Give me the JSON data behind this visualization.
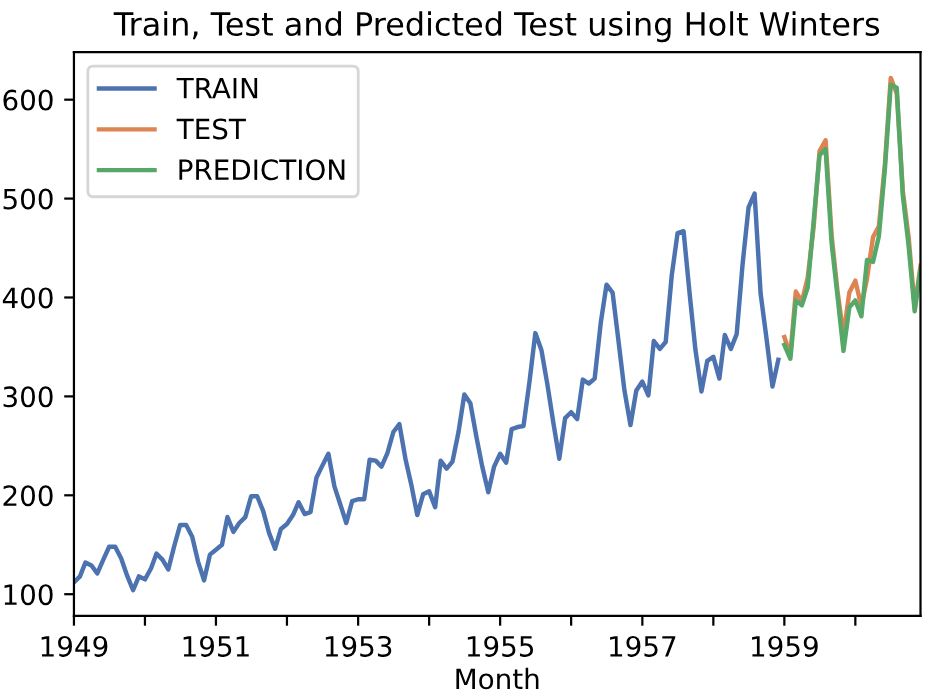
{
  "chart_data": {
    "type": "line",
    "title": "Train, Test and Predicted Test using Holt Winters",
    "xlabel": "Month",
    "legend": "top left",
    "grid": false,
    "xlim": [
      "1949-01",
      "1960-12"
    ],
    "xticks": [
      {
        "value": "1949-01",
        "label": "1949"
      },
      {
        "value": "1950-01",
        "label": null
      },
      {
        "value": "1951-01",
        "label": "1951"
      },
      {
        "value": "1952-01",
        "label": null
      },
      {
        "value": "1953-01",
        "label": "1953"
      },
      {
        "value": "1954-01",
        "label": null
      },
      {
        "value": "1955-01",
        "label": "1955"
      },
      {
        "value": "1956-01",
        "label": null
      },
      {
        "value": "1957-01",
        "label": "1957"
      },
      {
        "value": "1958-01",
        "label": null
      },
      {
        "value": "1959-01",
        "label": "1959"
      },
      {
        "value": "1960-01",
        "label": null
      }
    ],
    "ylim": [
      78,
      648
    ],
    "yticks": [
      100,
      200,
      300,
      400,
      500,
      600
    ],
    "series": [
      {
        "name": "TRAIN",
        "color": "#4c72b0",
        "x": [
          "1949-01",
          "1949-02",
          "1949-03",
          "1949-04",
          "1949-05",
          "1949-06",
          "1949-07",
          "1949-08",
          "1949-09",
          "1949-10",
          "1949-11",
          "1949-12",
          "1950-01",
          "1950-02",
          "1950-03",
          "1950-04",
          "1950-05",
          "1950-06",
          "1950-07",
          "1950-08",
          "1950-09",
          "1950-10",
          "1950-11",
          "1950-12",
          "1951-01",
          "1951-02",
          "1951-03",
          "1951-04",
          "1951-05",
          "1951-06",
          "1951-07",
          "1951-08",
          "1951-09",
          "1951-10",
          "1951-11",
          "1951-12",
          "1952-01",
          "1952-02",
          "1952-03",
          "1952-04",
          "1952-05",
          "1952-06",
          "1952-07",
          "1952-08",
          "1952-09",
          "1952-10",
          "1952-11",
          "1952-12",
          "1953-01",
          "1953-02",
          "1953-03",
          "1953-04",
          "1953-05",
          "1953-06",
          "1953-07",
          "1953-08",
          "1953-09",
          "1953-10",
          "1953-11",
          "1953-12",
          "1954-01",
          "1954-02",
          "1954-03",
          "1954-04",
          "1954-05",
          "1954-06",
          "1954-07",
          "1954-08",
          "1954-09",
          "1954-10",
          "1954-11",
          "1954-12",
          "1955-01",
          "1955-02",
          "1955-03",
          "1955-04",
          "1955-05",
          "1955-06",
          "1955-07",
          "1955-08",
          "1955-09",
          "1955-10",
          "1955-11",
          "1955-12",
          "1956-01",
          "1956-02",
          "1956-03",
          "1956-04",
          "1956-05",
          "1956-06",
          "1956-07",
          "1956-08",
          "1956-09",
          "1956-10",
          "1956-11",
          "1956-12",
          "1957-01",
          "1957-02",
          "1957-03",
          "1957-04",
          "1957-05",
          "1957-06",
          "1957-07",
          "1957-08",
          "1957-09",
          "1957-10",
          "1957-11",
          "1957-12",
          "1958-01",
          "1958-02",
          "1958-03",
          "1958-04",
          "1958-05",
          "1958-06",
          "1958-07",
          "1958-08",
          "1958-09",
          "1958-10",
          "1958-11",
          "1958-12"
        ],
        "values": [
          112,
          118,
          132,
          129,
          121,
          135,
          148,
          148,
          136,
          119,
          104,
          118,
          115,
          126,
          141,
          135,
          125,
          149,
          170,
          170,
          158,
          133,
          114,
          140,
          145,
          150,
          178,
          163,
          172,
          178,
          199,
          199,
          184,
          162,
          146,
          166,
          171,
          180,
          193,
          181,
          183,
          218,
          230,
          242,
          209,
          191,
          172,
          194,
          196,
          196,
          236,
          235,
          229,
          243,
          264,
          272,
          237,
          211,
          180,
          201,
          204,
          188,
          235,
          227,
          234,
          264,
          302,
          293,
          259,
          229,
          203,
          229,
          242,
          233,
          267,
          269,
          270,
          315,
          364,
          347,
          312,
          274,
          237,
          278,
          284,
          277,
          317,
          313,
          318,
          374,
          413,
          405,
          355,
          306,
          271,
          306,
          315,
          301,
          356,
          348,
          355,
          422,
          465,
          467,
          404,
          347,
          305,
          336,
          340,
          318,
          362,
          348,
          363,
          435,
          491,
          505,
          404,
          359,
          310,
          337
        ]
      },
      {
        "name": "TEST",
        "color": "#dd8452",
        "x": [
          "1959-01",
          "1959-02",
          "1959-03",
          "1959-04",
          "1959-05",
          "1959-06",
          "1959-07",
          "1959-08",
          "1959-09",
          "1959-10",
          "1959-11",
          "1959-12",
          "1960-01",
          "1960-02",
          "1960-03",
          "1960-04",
          "1960-05",
          "1960-06",
          "1960-07",
          "1960-08",
          "1960-09",
          "1960-10",
          "1960-11",
          "1960-12"
        ],
        "values": [
          360,
          342,
          406,
          396,
          420,
          472,
          548,
          559,
          463,
          407,
          362,
          405,
          417,
          391,
          419,
          461,
          472,
          535,
          622,
          606,
          508,
          461,
          390,
          432
        ]
      },
      {
        "name": "PREDICTION",
        "color": "#55a868",
        "x": [
          "1959-01",
          "1959-02",
          "1959-03",
          "1959-04",
          "1959-05",
          "1959-06",
          "1959-07",
          "1959-08",
          "1959-09",
          "1959-10",
          "1959-11",
          "1959-12",
          "1960-01",
          "1960-02",
          "1960-03",
          "1960-04",
          "1960-05",
          "1960-06",
          "1960-07",
          "1960-08",
          "1960-09",
          "1960-10",
          "1960-11",
          "1960-12"
        ],
        "values": [
          352,
          338,
          397,
          392,
          410,
          478,
          544,
          550,
          455,
          402,
          346,
          390,
          397,
          381,
          438,
          436,
          462,
          530,
          615,
          612,
          503,
          452,
          386,
          428
        ]
      }
    ]
  }
}
